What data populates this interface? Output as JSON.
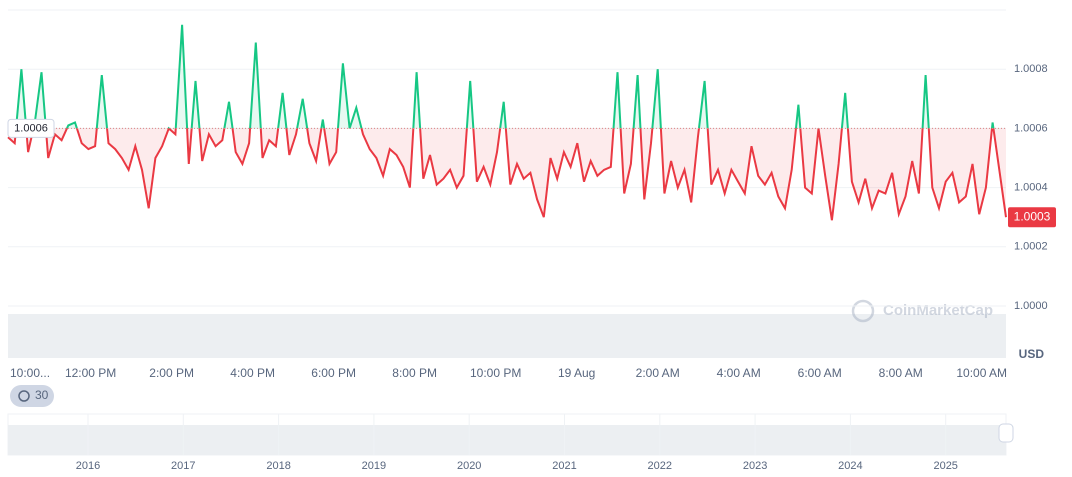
{
  "chart_data": {
    "type": "line",
    "series": [
      {
        "name": "USD",
        "values": [
          1.00057,
          1.00055,
          1.0008,
          1.00052,
          1.00062,
          1.00079,
          1.0005,
          1.00058,
          1.00056,
          1.00061,
          1.00062,
          1.00055,
          1.00053,
          1.00054,
          1.00078,
          1.00055,
          1.00053,
          1.0005,
          1.00046,
          1.00054,
          1.00046,
          1.00033,
          1.0005,
          1.00054,
          1.0006,
          1.00058,
          1.00095,
          1.00048,
          1.00076,
          1.00049,
          1.00058,
          1.00054,
          1.00056,
          1.00069,
          1.00052,
          1.00048,
          1.00055,
          1.00089,
          1.0005,
          1.00056,
          1.00054,
          1.00072,
          1.00051,
          1.00058,
          1.0007,
          1.00055,
          1.00049,
          1.00063,
          1.00048,
          1.00052,
          1.00082,
          1.0006,
          1.00067,
          1.00058,
          1.00053,
          1.0005,
          1.00044,
          1.00053,
          1.00051,
          1.00047,
          1.0004,
          1.00079,
          1.00043,
          1.00051,
          1.00041,
          1.00043,
          1.00046,
          1.0004,
          1.00044,
          1.00076,
          1.00042,
          1.00047,
          1.00041,
          1.00052,
          1.00069,
          1.00041,
          1.00048,
          1.00043,
          1.00045,
          1.00036,
          1.0003,
          1.0005,
          1.00043,
          1.00052,
          1.00047,
          1.00055,
          1.00042,
          1.00049,
          1.00044,
          1.00046,
          1.00047,
          1.00079,
          1.00038,
          1.00048,
          1.00078,
          1.00036,
          1.00055,
          1.0008,
          1.00038,
          1.00049,
          1.0004,
          1.00046,
          1.00035,
          1.00057,
          1.00076,
          1.00041,
          1.00046,
          1.00038,
          1.00046,
          1.00042,
          1.00038,
          1.00054,
          1.00044,
          1.00041,
          1.00045,
          1.00037,
          1.00033,
          1.00046,
          1.00068,
          1.0004,
          1.00038,
          1.0006,
          1.00044,
          1.00029,
          1.00048,
          1.00072,
          1.00042,
          1.00035,
          1.00043,
          1.00033,
          1.00039,
          1.00038,
          1.00045,
          1.00031,
          1.00037,
          1.00049,
          1.00038,
          1.00078,
          1.0004,
          1.00033,
          1.00042,
          1.00045,
          1.00035,
          1.00037,
          1.00048,
          1.00031,
          1.0004,
          1.00062,
          1.00046,
          1.0003
        ]
      }
    ],
    "color_up": "#16c784",
    "color_down": "#ea3943",
    "baseline": 1.0006,
    "ylim": [
      1.0,
      1.001
    ],
    "yticks": [
      {
        "value": 1.0,
        "label": "1.0000"
      },
      1.0002,
      1.0004,
      1.0006,
      1.0008
    ],
    "xlim": [
      9.96,
      34.6
    ],
    "xticks": [
      {
        "value": 10,
        "label": "10:00..."
      },
      {
        "value": 12,
        "label": "12:00 PM"
      },
      {
        "value": 14,
        "label": "2:00 PM"
      },
      {
        "value": 16,
        "label": "4:00 PM"
      },
      {
        "value": 18,
        "label": "6:00 PM"
      },
      {
        "value": 20,
        "label": "8:00 PM"
      },
      {
        "value": 22,
        "label": "10:00 PM"
      },
      {
        "value": 24,
        "label": "19 Aug"
      },
      {
        "value": 26,
        "label": "2:00 AM"
      },
      {
        "value": 28,
        "label": "4:00 AM"
      },
      {
        "value": 30,
        "label": "6:00 AM"
      },
      {
        "value": 32,
        "label": "8:00 AM"
      },
      {
        "value": 34,
        "label": "10:00 AM"
      }
    ],
    "currency": "USD",
    "interval_badge": "30",
    "watermark": "CoinMarketCap",
    "navigator_years": [
      "2016",
      "2017",
      "2018",
      "2019",
      "2020",
      "2021",
      "2022",
      "2023",
      "2024",
      "2025"
    ]
  }
}
